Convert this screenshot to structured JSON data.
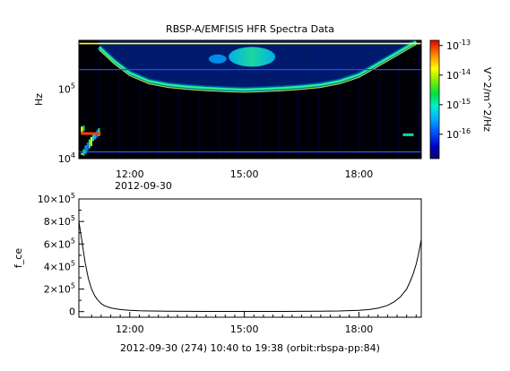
{
  "chart_data": [
    {
      "type": "heatmap",
      "title": "RBSP-A/EMFISIS  HFR Spectra Data",
      "ylabel": "Hz",
      "y_scale": "log",
      "ylim": [
        10000,
        500000
      ],
      "y_ticks": [
        {
          "value": 10000,
          "base": "10",
          "exp": "4"
        },
        {
          "value": 100000,
          "base": "10",
          "exp": "5"
        }
      ],
      "x_ticks": [
        {
          "value": 12.0,
          "label": "12:00"
        },
        {
          "value": 15.0,
          "label": "15:00"
        },
        {
          "value": 18.0,
          "label": "18:00"
        }
      ],
      "x_date_label": "2012-09-30",
      "xlim": [
        10.667,
        19.633
      ],
      "colorbar": {
        "label": "V^2/m^2/Hz",
        "scale": "log",
        "range": [
          1.5e-17,
          1.5e-13
        ],
        "ticks": [
          {
            "value": 1e-13,
            "base": "10",
            "exp": "-13"
          },
          {
            "value": 1e-14,
            "base": "10",
            "exp": "-14"
          },
          {
            "value": 1e-15,
            "base": "10",
            "exp": "-15"
          },
          {
            "value": 1e-16,
            "base": "10",
            "exp": "-16"
          }
        ]
      },
      "bands": [
        {
          "name": "upper_hybrid_line",
          "points": [
            [
              11.2,
              400000
            ],
            [
              11.6,
              250000
            ],
            [
              12.0,
              170000
            ],
            [
              12.5,
              130000
            ],
            [
              13.0,
              115000
            ],
            [
              13.5,
              108000
            ],
            [
              14.0,
              103000
            ],
            [
              14.5,
              100000
            ],
            [
              15.0,
              98000
            ],
            [
              15.5,
              100000
            ],
            [
              16.0,
              103000
            ],
            [
              16.5,
              108000
            ],
            [
              17.0,
              115000
            ],
            [
              17.5,
              130000
            ],
            [
              18.0,
              160000
            ],
            [
              18.5,
              230000
            ],
            [
              19.0,
              330000
            ],
            [
              19.5,
              480000
            ]
          ]
        },
        {
          "name": "constant_lines_hz",
          "values": [
            450000,
            190000,
            12500
          ]
        }
      ]
    },
    {
      "type": "line",
      "title": "",
      "ylabel": "f_ce",
      "xlabel": "2012-09-30 (274) 10:40 to 19:38 (orbit:rbspa-pp:84)",
      "xlim": [
        10.667,
        19.633
      ],
      "ylim": [
        -50000,
        1000000
      ],
      "y_ticks": [
        {
          "value": 0,
          "mant": "0",
          "exp": ""
        },
        {
          "value": 200000,
          "mant": "2×10",
          "exp": "5"
        },
        {
          "value": 400000,
          "mant": "4×10",
          "exp": "5"
        },
        {
          "value": 600000,
          "mant": "6×10",
          "exp": "5"
        },
        {
          "value": 800000,
          "mant": "8×10",
          "exp": "5"
        },
        {
          "value": 1000000,
          "mant": "10×10",
          "exp": "5"
        }
      ],
      "x_ticks": [
        {
          "value": 12.0,
          "label": "12:00"
        },
        {
          "value": 15.0,
          "label": "15:00"
        },
        {
          "value": 18.0,
          "label": "18:00"
        }
      ],
      "series": [
        {
          "x": [
            10.667,
            10.75,
            10.833,
            10.917,
            11.0,
            11.083,
            11.167,
            11.25,
            11.333,
            11.5,
            11.667,
            11.833,
            12.0,
            12.25,
            12.5,
            13.0,
            13.5,
            14.0,
            14.5,
            15.0,
            15.5,
            16.0,
            16.5,
            17.0,
            17.5,
            17.75,
            18.0,
            18.25,
            18.5,
            18.75,
            18.917,
            19.083,
            19.25,
            19.333,
            19.417,
            19.5,
            19.567,
            19.633
          ],
          "y": [
            800000,
            620000,
            430000,
            290000,
            200000,
            140000,
            100000,
            72000,
            53000,
            33000,
            22000,
            15000,
            11000,
            7500,
            5500,
            3500,
            2500,
            2000,
            1600,
            1500,
            1600,
            2000,
            2500,
            3500,
            6000,
            8500,
            12000,
            18000,
            30000,
            55000,
            85000,
            130000,
            200000,
            260000,
            330000,
            420000,
            520000,
            640000
          ]
        }
      ]
    }
  ]
}
